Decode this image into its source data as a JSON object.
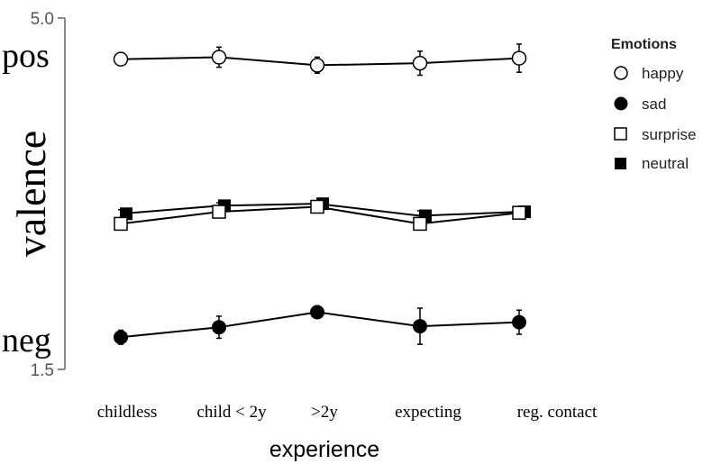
{
  "chart_data": {
    "type": "line",
    "xlabel": "experience",
    "ylabel": "valence",
    "ylim": [
      1.5,
      5.0
    ],
    "y_tick_labels": [
      "5.0",
      "1.5"
    ],
    "y_end_labels": {
      "top": "pos",
      "bottom": "neg"
    },
    "categories": [
      "childless",
      "child < 2y",
      ">2y",
      "expecting",
      "reg. contact"
    ],
    "legend_title": "Emotions",
    "legend_position": "top-right",
    "series": [
      {
        "name": "happy",
        "marker": "circle-open",
        "values": [
          4.59,
          4.61,
          4.53,
          4.55,
          4.6
        ],
        "errors": [
          0.06,
          0.1,
          0.08,
          0.12,
          0.14
        ]
      },
      {
        "name": "sad",
        "marker": "circle-filled",
        "values": [
          1.82,
          1.92,
          2.07,
          1.93,
          1.97
        ],
        "errors": [
          0.07,
          0.11,
          0.06,
          0.18,
          0.12
        ]
      },
      {
        "name": "surprise",
        "marker": "square-open",
        "values": [
          2.95,
          3.07,
          3.12,
          2.95,
          3.06
        ],
        "errors": [
          0.03,
          0.03,
          0.03,
          0.05,
          0.03
        ]
      },
      {
        "name": "neutral",
        "marker": "square-filled",
        "values": [
          3.05,
          3.13,
          3.15,
          3.03,
          3.07
        ],
        "errors": [
          0.04,
          0.03,
          0.03,
          0.05,
          0.03
        ]
      }
    ]
  }
}
